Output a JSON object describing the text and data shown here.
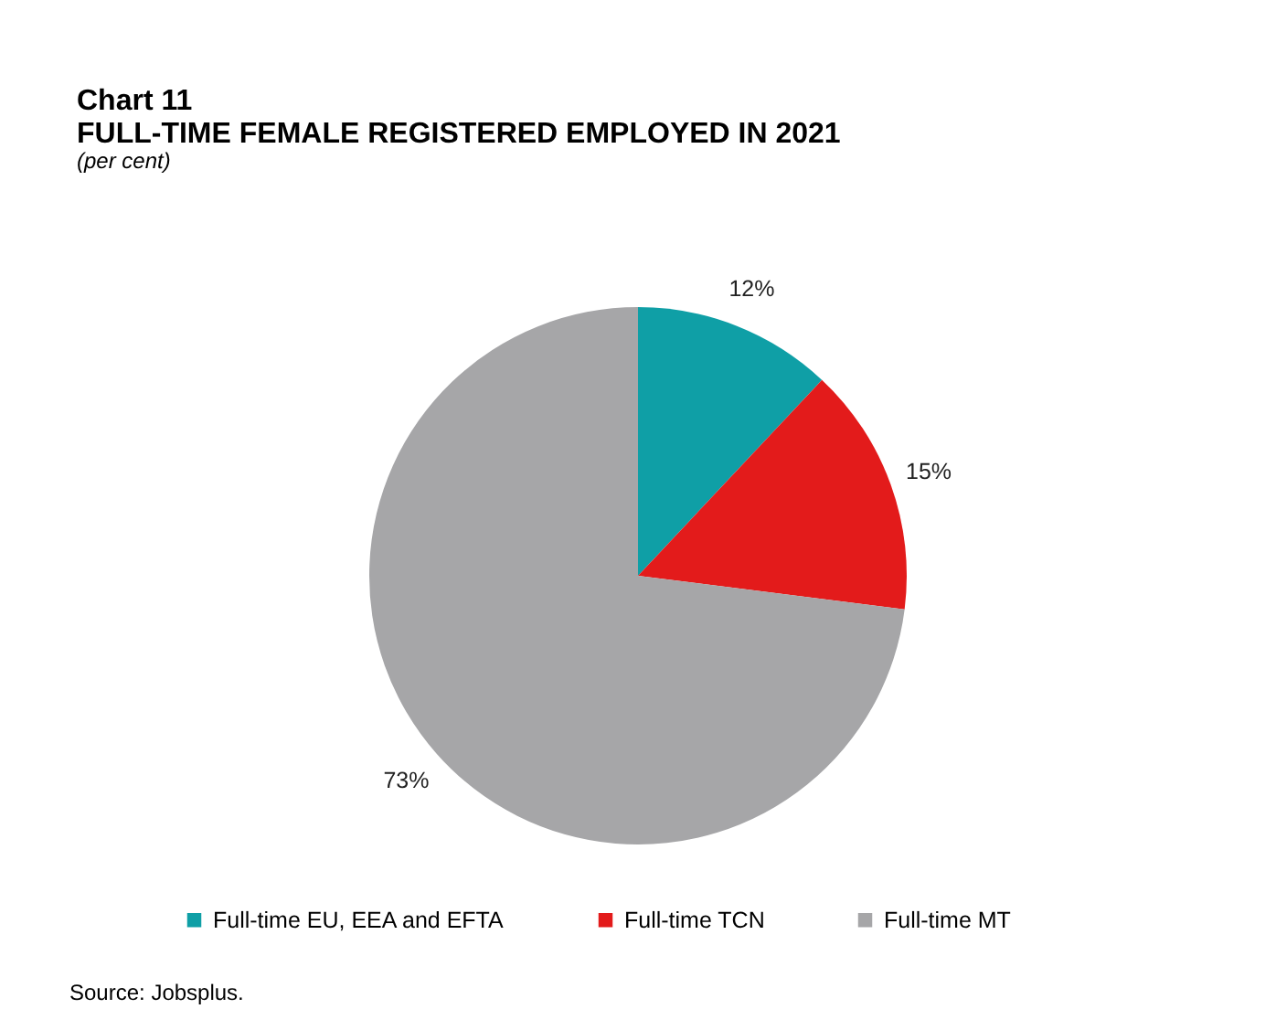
{
  "chart_data": {
    "type": "pie",
    "title": "Chart 11\nFULL-TIME FEMALE REGISTERED EMPLOYED IN 2021",
    "subtitle": "(per cent)",
    "categories": [
      "Full-time EU, EEA and EFTA",
      "Full-time TCN",
      "Full-time MT"
    ],
    "values": [
      12,
      15,
      73
    ],
    "colors": [
      "#0f9fa6",
      "#e31b1b",
      "#a6a6a8"
    ],
    "value_labels": [
      "12%",
      "15%",
      "73%"
    ],
    "legend": "bottom",
    "annotations": [
      "Source: Jobsplus."
    ]
  }
}
